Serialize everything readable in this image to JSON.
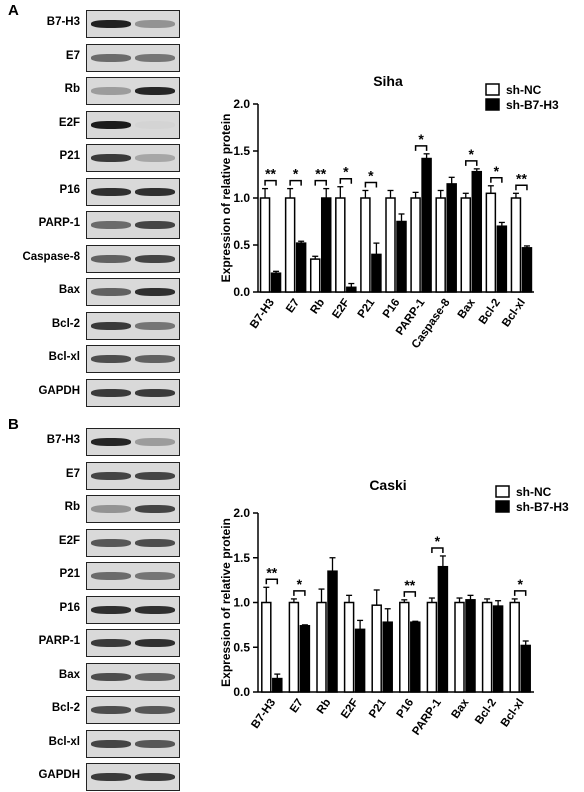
{
  "panels": [
    {
      "letter": "A",
      "blots": [
        {
          "label": "B7-H3",
          "lanes": [
            0.92,
            0.35
          ]
        },
        {
          "label": "E7",
          "lanes": [
            0.55,
            0.5
          ]
        },
        {
          "label": "Rb",
          "lanes": [
            0.3,
            0.9
          ]
        },
        {
          "label": "E2F",
          "lanes": [
            0.95,
            0.02
          ]
        },
        {
          "label": "P21",
          "lanes": [
            0.8,
            0.25
          ]
        },
        {
          "label": "P16",
          "lanes": [
            0.85,
            0.85
          ]
        },
        {
          "label": "PARP-1",
          "lanes": [
            0.55,
            0.75
          ]
        },
        {
          "label": "Caspase-8",
          "lanes": [
            0.6,
            0.75
          ]
        },
        {
          "label": "Bax",
          "lanes": [
            0.6,
            0.85
          ]
        },
        {
          "label": "Bcl-2",
          "lanes": [
            0.8,
            0.5
          ]
        },
        {
          "label": "Bcl-xl",
          "lanes": [
            0.7,
            0.6
          ]
        },
        {
          "label": "GAPDH",
          "lanes": [
            0.8,
            0.8
          ]
        }
      ]
    },
    {
      "letter": "B",
      "blots": [
        {
          "label": "B7-H3",
          "lanes": [
            0.9,
            0.3
          ]
        },
        {
          "label": "E7",
          "lanes": [
            0.75,
            0.75
          ]
        },
        {
          "label": "Rb",
          "lanes": [
            0.35,
            0.75
          ]
        },
        {
          "label": "E2F",
          "lanes": [
            0.65,
            0.7
          ]
        },
        {
          "label": "P21",
          "lanes": [
            0.55,
            0.5
          ]
        },
        {
          "label": "P16",
          "lanes": [
            0.85,
            0.85
          ]
        },
        {
          "label": "PARP-1",
          "lanes": [
            0.8,
            0.85
          ]
        },
        {
          "label": "Bax",
          "lanes": [
            0.7,
            0.6
          ]
        },
        {
          "label": "Bcl-2",
          "lanes": [
            0.7,
            0.65
          ]
        },
        {
          "label": "Bcl-xl",
          "lanes": [
            0.75,
            0.65
          ]
        },
        {
          "label": "GAPDH",
          "lanes": [
            0.8,
            0.8
          ]
        }
      ]
    }
  ],
  "colors": {
    "nc_fill": "#ffffff",
    "b7_fill": "#000000",
    "blot_bg": "#d9d9d9",
    "band": "#111111"
  },
  "chart_data": [
    {
      "type": "bar",
      "title": "Siha",
      "xlabel": "",
      "ylabel": "Expression of relative protein",
      "ylim": [
        0,
        2.0
      ],
      "yticks": [
        "0.0",
        "0.5",
        "1.0",
        "1.5",
        "2.0"
      ],
      "categories": [
        "B7-H3",
        "E7",
        "Rb",
        "E2F",
        "P21",
        "P16",
        "PARP-1",
        "Caspase-8",
        "Bax",
        "Bcl-2",
        "Bcl-xl"
      ],
      "legend_position": "top-right",
      "series": [
        {
          "name": "sh-NC",
          "values": [
            1.0,
            1.0,
            0.35,
            1.0,
            1.0,
            1.0,
            1.0,
            1.0,
            1.0,
            1.05,
            1.0
          ],
          "errors": [
            0.1,
            0.1,
            0.03,
            0.12,
            0.08,
            0.08,
            0.06,
            0.08,
            0.05,
            0.08,
            0.05
          ]
        },
        {
          "name": "sh-B7-H3",
          "values": [
            0.2,
            0.52,
            1.0,
            0.05,
            0.4,
            0.75,
            1.42,
            1.15,
            1.28,
            0.7,
            0.47
          ],
          "errors": [
            0.02,
            0.02,
            0.1,
            0.04,
            0.12,
            0.08,
            0.05,
            0.07,
            0.03,
            0.04,
            0.02
          ]
        }
      ],
      "significance": [
        "**",
        "*",
        "**",
        "*",
        "*",
        "",
        "*",
        "",
        "*",
        "*",
        "**"
      ]
    },
    {
      "type": "bar",
      "title": "Caski",
      "xlabel": "",
      "ylabel": "Expression of relative protein",
      "ylim": [
        0,
        2.0
      ],
      "yticks": [
        "0.0",
        "0.5",
        "1.0",
        "1.5",
        "2.0"
      ],
      "categories": [
        "B7-H3",
        "E7",
        "Rb",
        "E2F",
        "P21",
        "P16",
        "PARP-1",
        "Bax",
        "Bcl-2",
        "Bcl-xl"
      ],
      "legend_position": "top-right",
      "series": [
        {
          "name": "sh-NC",
          "values": [
            1.0,
            1.0,
            1.0,
            1.0,
            0.97,
            1.0,
            1.0,
            1.0,
            1.0,
            1.0
          ],
          "errors": [
            0.17,
            0.04,
            0.15,
            0.08,
            0.17,
            0.03,
            0.05,
            0.05,
            0.04,
            0.04
          ]
        },
        {
          "name": "sh-B7-H3",
          "values": [
            0.15,
            0.74,
            1.35,
            0.7,
            0.78,
            0.78,
            1.4,
            1.03,
            0.96,
            0.52
          ],
          "errors": [
            0.05,
            0.01,
            0.15,
            0.1,
            0.15,
            0.01,
            0.12,
            0.05,
            0.06,
            0.05
          ]
        }
      ],
      "significance": [
        "**",
        "*",
        "",
        "",
        "",
        "**",
        "*",
        "",
        "",
        "*"
      ]
    }
  ]
}
